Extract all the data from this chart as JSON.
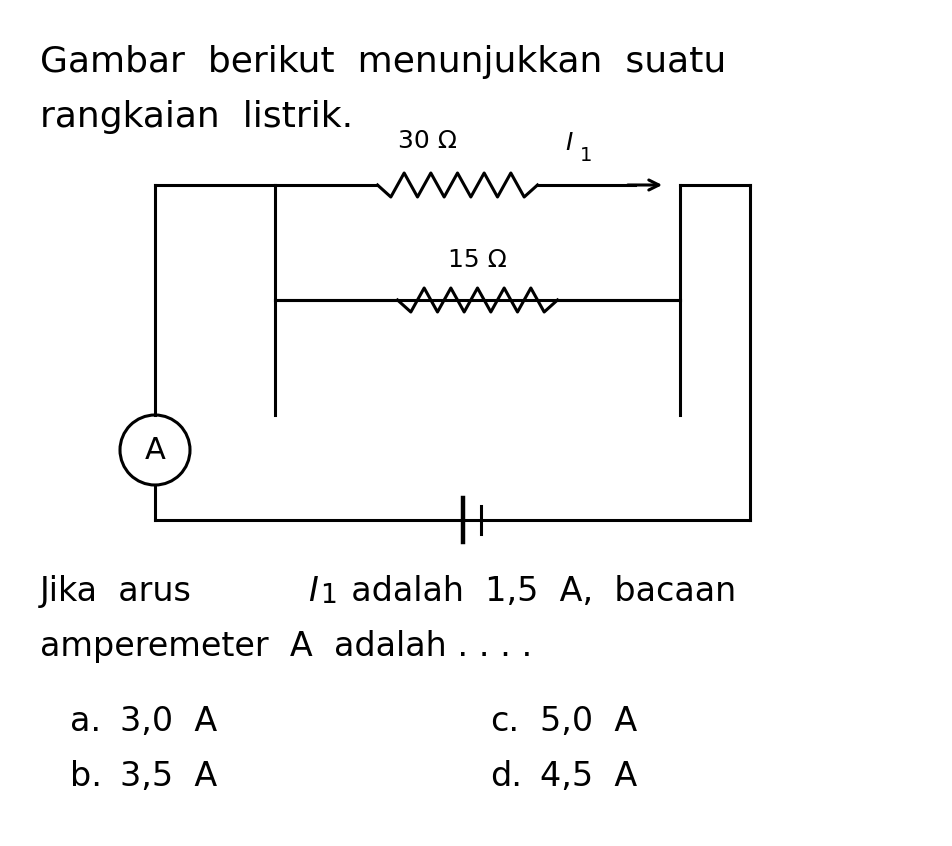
{
  "title_line1": "Gambar  berikut  menunjukkan  suatu",
  "title_line2": "rangkaian  listrik.",
  "resistor1_label": "30 Ω",
  "current_label": "I",
  "current_sub": "1",
  "resistor2_label": "15 Ω",
  "ammeter_label": "A",
  "question_line1_parts": [
    "Jika  arus  ",
    "I",
    "1",
    "  adalah  1,5  A,  bacaan"
  ],
  "question_line2": "amperemeter  A  adalah . . . .",
  "opt_a_label": "a.",
  "opt_a_val": "3,0  A",
  "opt_b_label": "b.",
  "opt_b_val": "3,5  A",
  "opt_c_label": "c.",
  "opt_c_val": "5,0  A",
  "opt_d_label": "d.",
  "opt_d_val": "4,5  A",
  "bg_color": "#ffffff",
  "line_color": "#000000",
  "font_size_title": 26,
  "font_size_body": 24,
  "font_size_circuit": 18,
  "font_size_options": 24
}
